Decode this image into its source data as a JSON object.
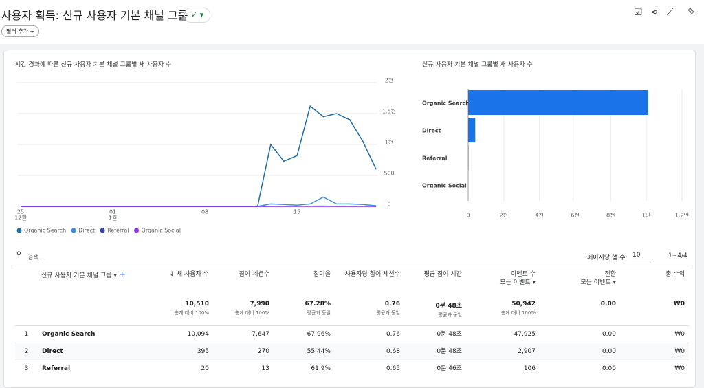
{
  "header": {
    "title": "사용자 획득: 신규 사용자 기본 채널 그룹",
    "filter_button": "필터 추가"
  },
  "chart_data": [
    {
      "type": "line",
      "title": "시간 경과에 따른 신규 사용자 기본 채널 그룹별 새 사용자 수",
      "categories": [
        "25",
        null,
        null,
        null,
        null,
        null,
        null,
        "01",
        null,
        null,
        null,
        null,
        null,
        null,
        "08",
        null,
        null,
        null,
        null,
        null,
        null,
        "15",
        null,
        null,
        null,
        null,
        null,
        null
      ],
      "category_months": [
        "12월",
        null,
        null,
        null,
        null,
        null,
        null,
        "1월",
        null,
        null,
        null,
        null,
        null,
        null,
        null,
        null,
        null,
        null,
        null,
        null,
        null,
        null,
        null,
        null,
        null,
        null,
        null,
        null
      ],
      "series": [
        {
          "name": "Organic Search",
          "color": "#1f6ea3",
          "values": [
            0,
            0,
            0,
            0,
            0,
            0,
            0,
            0,
            0,
            0,
            0,
            0,
            0,
            0,
            0,
            0,
            0,
            0,
            0,
            1000,
            730,
            820,
            1620,
            1450,
            1500,
            1400,
            1050,
            600
          ]
        },
        {
          "name": "Direct",
          "color": "#3f8fe0",
          "values": [
            0,
            0,
            0,
            0,
            0,
            0,
            0,
            0,
            0,
            0,
            0,
            0,
            0,
            0,
            0,
            0,
            0,
            0,
            0,
            40,
            30,
            20,
            40,
            150,
            40,
            40,
            30,
            10
          ]
        },
        {
          "name": "Referral",
          "color": "#3949ab",
          "values": [
            0,
            0,
            0,
            0,
            0,
            0,
            0,
            0,
            0,
            0,
            0,
            0,
            0,
            0,
            0,
            0,
            0,
            0,
            0,
            2,
            2,
            3,
            3,
            4,
            2,
            2,
            1,
            1
          ]
        },
        {
          "name": "Organic Social",
          "color": "#9334e6",
          "values": [
            0,
            0,
            0,
            0,
            0,
            0,
            0,
            0,
            0,
            0,
            0,
            0,
            0,
            0,
            0,
            0,
            0,
            0,
            0,
            0,
            0,
            0,
            0,
            0,
            0,
            0,
            0,
            0
          ]
        }
      ],
      "ylim": [
        0,
        2000
      ],
      "yticks": [
        0,
        500,
        {
          "value": 1000,
          "label": "1천"
        },
        {
          "value": 1500,
          "label": "1.5천"
        },
        {
          "value": 2000,
          "label": "2천"
        }
      ],
      "grid": true,
      "legend": "bottom"
    },
    {
      "type": "hbar",
      "title": "신규 사용자 기본 채널 그룹별 새 사용자 수",
      "categories": [
        "Organic Search",
        "Direct",
        "Referral",
        "Organic Social"
      ],
      "values": [
        10094,
        395,
        20,
        0
      ],
      "color": "#1a73e8",
      "xlim": [
        0,
        12000
      ],
      "xticks": [
        0,
        {
          "value": 2000,
          "label": "2천"
        },
        {
          "value": 4000,
          "label": "4천"
        },
        {
          "value": 6000,
          "label": "6천"
        },
        {
          "value": 8000,
          "label": "8천"
        },
        {
          "value": 10000,
          "label": "1만"
        },
        {
          "value": 12000,
          "label": "1.2만"
        }
      ],
      "grid": true
    }
  ],
  "table": {
    "search_placeholder": "검색...",
    "rows_per_page_label": "페이지당 행 수:",
    "rows_per_page": "10",
    "pagination": "1~4/4",
    "columns": [
      {
        "label": "신규 사용자 기본 채널 그룹"
      },
      {
        "label": "새 사용자 수"
      },
      {
        "label": "참여 세션수"
      },
      {
        "label": "참여율"
      },
      {
        "label": "사용자당 참여 세션수"
      },
      {
        "label": "평균 참여 시간"
      },
      {
        "label": "이벤트 수",
        "sub": "모든 이벤트"
      },
      {
        "label": "전환",
        "sub": "모든 이벤트"
      },
      {
        "label": "총 수익"
      }
    ],
    "totals": [
      {
        "value": "10,510",
        "note": "총계 대비 100%"
      },
      {
        "value": "7,990",
        "note": "총계 대비 100%"
      },
      {
        "value": "67.28%",
        "note": "평균과 동일"
      },
      {
        "value": "0.76",
        "note": "평균과 동일"
      },
      {
        "value": "0분 48초",
        "note": "평균과 동일"
      },
      {
        "value": "50,942",
        "note": "총계 대비 100%"
      },
      {
        "value": "0.00"
      },
      {
        "value": "₩0"
      }
    ],
    "rows": [
      {
        "rank": "1",
        "cells": [
          "Organic Search",
          "10,094",
          "7,647",
          "67.96%",
          "0.76",
          "0분 48초",
          "47,925",
          "0.00",
          "₩0"
        ]
      },
      {
        "rank": "2",
        "cells": [
          "Direct",
          "395",
          "270",
          "55.44%",
          "0.68",
          "0분 48초",
          "2,907",
          "0.00",
          "₩0"
        ]
      },
      {
        "rank": "3",
        "cells": [
          "Referral",
          "20",
          "13",
          "61.9%",
          "0.65",
          "0분 46초",
          "106",
          "0.00",
          "₩0"
        ]
      }
    ]
  }
}
